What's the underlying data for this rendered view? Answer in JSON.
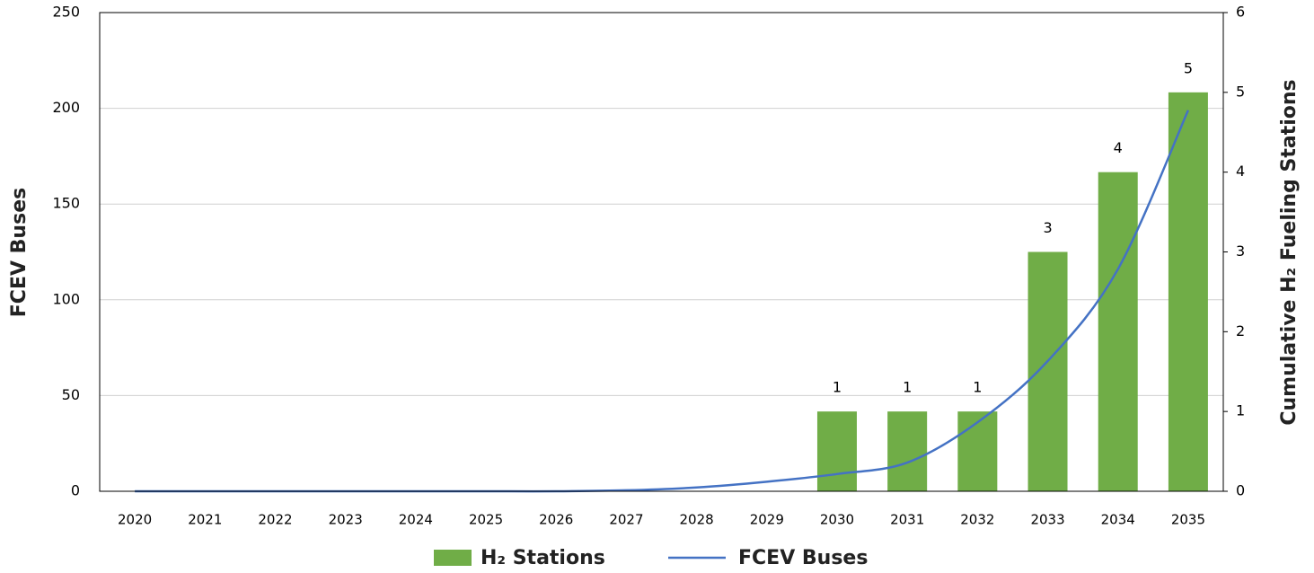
{
  "chart_data": {
    "type": "bar-line",
    "categories": [
      "2020",
      "2021",
      "2022",
      "2023",
      "2024",
      "2025",
      "2026",
      "2027",
      "2028",
      "2029",
      "2030",
      "2031",
      "2032",
      "2033",
      "2034",
      "2035"
    ],
    "series": [
      {
        "name": "H₂ Stations",
        "type": "bar",
        "axis": "y2",
        "color": "#70ad47",
        "values": [
          null,
          null,
          null,
          null,
          null,
          null,
          null,
          null,
          null,
          null,
          1,
          1,
          1,
          3,
          4,
          5
        ]
      },
      {
        "name": "FCEV Buses",
        "type": "line",
        "axis": "y",
        "color": "#4472c4",
        "values": [
          0,
          0,
          0,
          0,
          0,
          0,
          0,
          0.5,
          2,
          5,
          9,
          15,
          36,
          68,
          116,
          199
        ]
      }
    ],
    "ylabel": "FCEV Buses",
    "y2label": "Cumulative H₂ Fueling Stations",
    "ylim": [
      0,
      250
    ],
    "yticks": [
      0,
      50,
      100,
      150,
      200,
      250
    ],
    "y2lim": [
      0,
      6
    ],
    "y2ticks": [
      0,
      1,
      2,
      3,
      4,
      5,
      6
    ],
    "grid": true,
    "legend": "bottom"
  }
}
